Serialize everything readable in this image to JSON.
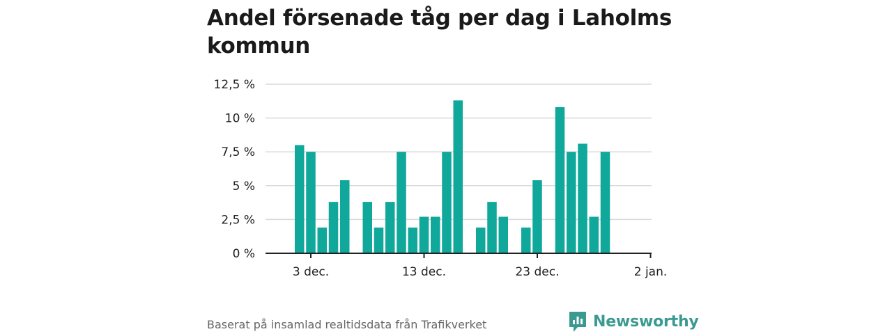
{
  "title": "Andel försenade tåg per dag i Laholms kommun",
  "source": "Baserat på insamlad realtidsdata från Trafikverket",
  "brand": {
    "name": "Newsworthy",
    "color": "#3a9a90"
  },
  "colors": {
    "bar": "#0fa89b",
    "grid": "#d9d9d9",
    "axis": "#222222"
  },
  "chart_data": {
    "type": "bar",
    "title": "Andel försenade tåg per dag i Laholms kommun",
    "x_tick_labels": [
      "3 dec.",
      "13 dec.",
      "23 dec.",
      "2 jan."
    ],
    "y_tick_labels": [
      "0 %",
      "2,5 %",
      "5 %",
      "7,5 %",
      "10 %",
      "12,5 %"
    ],
    "y_ticks": [
      0,
      2.5,
      5,
      7.5,
      10,
      12.5
    ],
    "ylim": [
      0,
      12.5
    ],
    "unit": "%",
    "grid": true,
    "series": [
      {
        "x": [
          "2 dec.",
          "3 dec.",
          "4 dec.",
          "5 dec.",
          "6 dec.",
          "8 dec.",
          "9 dec.",
          "10 dec.",
          "11 dec.",
          "12 dec.",
          "13 dec.",
          "14 dec.",
          "15 dec.",
          "16 dec.",
          "18 dec.",
          "19 dec.",
          "20 dec.",
          "22 dec.",
          "23 dec.",
          "25 dec.",
          "26 dec.",
          "27 dec.",
          "28 dec.",
          "29 dec."
        ],
        "values": [
          8.0,
          7.5,
          1.9,
          3.8,
          5.4,
          3.8,
          1.9,
          3.8,
          7.5,
          1.9,
          2.7,
          2.7,
          7.5,
          11.3,
          1.9,
          3.8,
          2.7,
          1.9,
          5.4,
          10.8,
          7.5,
          8.1,
          2.7,
          7.5
        ]
      }
    ]
  }
}
